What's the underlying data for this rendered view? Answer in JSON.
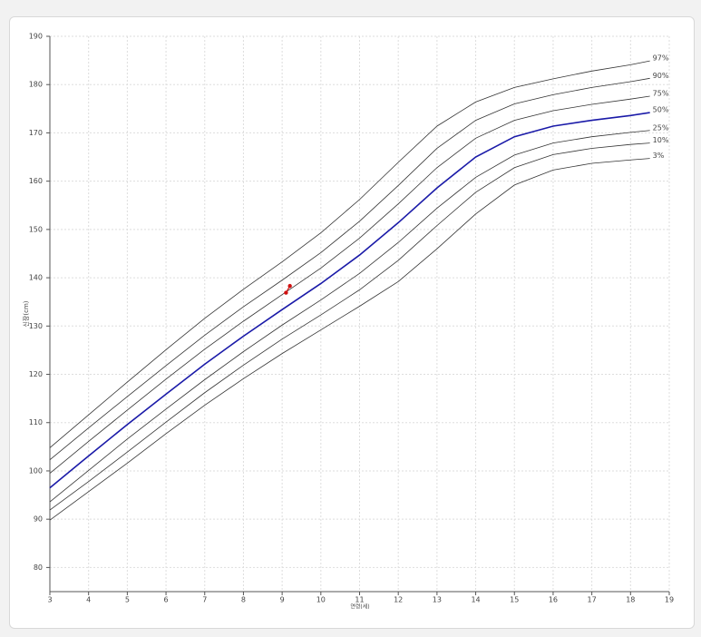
{
  "chart_data": {
    "type": "line",
    "x_label": "연령(세)",
    "y_label": "신장(cm)",
    "x": [
      3,
      4,
      5,
      6,
      7,
      8,
      9,
      10,
      11,
      12,
      13,
      14,
      15,
      16,
      17,
      18,
      18.5
    ],
    "series": [
      {
        "name": "97%",
        "color": "#333333",
        "values": [
          104.8,
          111.6,
          118.4,
          125.1,
          131.6,
          137.6,
          143.3,
          149.3,
          156.2,
          163.9,
          171.4,
          176.4,
          179.4,
          181.2,
          182.8,
          184.1,
          184.9
        ]
      },
      {
        "name": "90%",
        "color": "#333333",
        "values": [
          102.3,
          108.9,
          115.4,
          121.8,
          128.1,
          134.0,
          139.5,
          145.2,
          151.7,
          159.1,
          166.8,
          172.6,
          176.0,
          177.9,
          179.4,
          180.6,
          181.3
        ]
      },
      {
        "name": "75%",
        "color": "#333333",
        "values": [
          99.5,
          106.1,
          112.6,
          119.0,
          125.2,
          131.0,
          136.5,
          142.0,
          148.2,
          155.3,
          162.8,
          168.9,
          172.6,
          174.6,
          175.9,
          177.0,
          177.6
        ]
      },
      {
        "name": "50%",
        "color": "#1a1aa8",
        "values": [
          96.5,
          103.1,
          109.6,
          115.9,
          122.1,
          127.9,
          133.4,
          138.8,
          144.7,
          151.4,
          158.6,
          165.0,
          169.2,
          171.4,
          172.6,
          173.6,
          174.2
        ]
      },
      {
        "name": "25%",
        "color": "#333333",
        "values": [
          93.6,
          100.1,
          106.6,
          112.8,
          118.9,
          124.7,
          130.2,
          135.4,
          140.9,
          147.3,
          154.4,
          160.8,
          165.4,
          167.9,
          169.2,
          170.1,
          170.5
        ]
      },
      {
        "name": "10%",
        "color": "#333333",
        "values": [
          91.9,
          97.8,
          103.9,
          110.1,
          116.2,
          121.9,
          127.3,
          132.3,
          137.5,
          143.6,
          150.8,
          157.7,
          162.8,
          165.5,
          166.8,
          167.6,
          167.9
        ]
      },
      {
        "name": "3%",
        "color": "#333333",
        "values": [
          89.8,
          95.7,
          101.6,
          107.7,
          113.6,
          119.1,
          124.3,
          129.2,
          134.1,
          139.2,
          146.0,
          153.2,
          159.2,
          162.3,
          163.7,
          164.4,
          164.7
        ]
      }
    ],
    "points": {
      "color": "#d01010",
      "x": [
        9.1,
        9.2
      ],
      "values": [
        136.9,
        138.3
      ]
    },
    "xlim": [
      3,
      19
    ],
    "xticks": [
      3,
      4,
      5,
      6,
      7,
      8,
      9,
      10,
      11,
      12,
      13,
      14,
      15,
      16,
      17,
      18,
      19
    ],
    "ylim": [
      75,
      190
    ],
    "yticks": [
      80,
      90,
      100,
      110,
      120,
      130,
      140,
      150,
      160,
      170,
      180,
      190
    ],
    "grid": true
  }
}
